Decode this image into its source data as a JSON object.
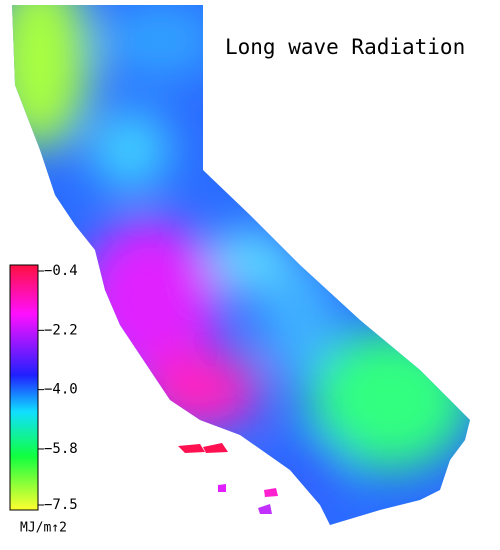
{
  "map": {
    "title": "Long wave Radiation",
    "colorbar": {
      "lim": [
        -7.5,
        -0.4
      ],
      "ticks": [
        {
          "value": -0.4,
          "label": "−0.4"
        },
        {
          "value": -2.2,
          "label": "−2.2"
        },
        {
          "value": -4.0,
          "label": "−4.0"
        },
        {
          "value": -5.8,
          "label": "−5.8"
        },
        {
          "value": -7.5,
          "label": "−7.5"
        }
      ],
      "unit": "MJ/m↑2"
    }
  }
}
